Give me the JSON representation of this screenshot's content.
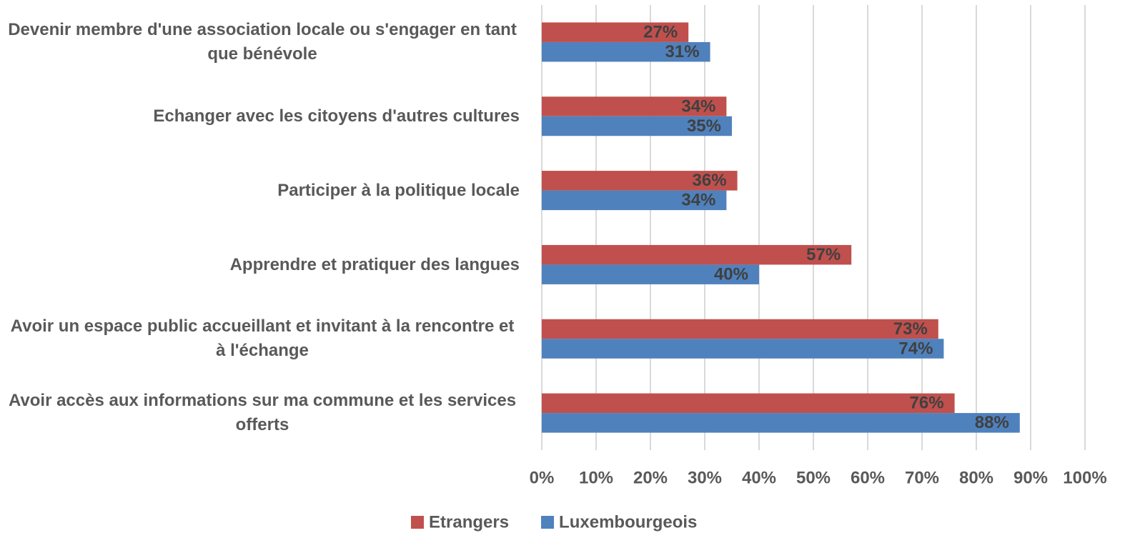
{
  "chart_data": {
    "type": "barh",
    "categories": [
      "Devenir membre d'une association locale ou s'engager en tant que bénévole",
      "Echanger avec les citoyens d'autres cultures",
      "Participer à la politique locale",
      "Apprendre et pratiquer des langues",
      "Avoir un espace public accueillant et invitant à la rencontre et à l'échange",
      "Avoir accès aux informations sur ma commune et les services offerts"
    ],
    "series": [
      {
        "name": "Etrangers",
        "color": "#c0504d",
        "values": [
          27,
          34,
          36,
          57,
          73,
          76
        ],
        "value_labels": [
          "27%",
          "34%",
          "36%",
          "57%",
          "73%",
          "76%"
        ]
      },
      {
        "name": "Luxembourgeois",
        "color": "#4f81bd",
        "values": [
          31,
          35,
          34,
          40,
          74,
          88
        ],
        "value_labels": [
          "31%",
          "35%",
          "34%",
          "40%",
          "74%",
          "88%"
        ]
      }
    ],
    "xlim": [
      0,
      100
    ],
    "xticks": [
      {
        "value": 0,
        "label": "0%"
      },
      {
        "value": 10,
        "label": "10%"
      },
      {
        "value": 20,
        "label": "20%"
      },
      {
        "value": 30,
        "label": "30%"
      },
      {
        "value": 40,
        "label": "40%"
      },
      {
        "value": 50,
        "label": "50%"
      },
      {
        "value": 60,
        "label": "60%"
      },
      {
        "value": 70,
        "label": "70%"
      },
      {
        "value": 80,
        "label": "80%"
      },
      {
        "value": 90,
        "label": "90%"
      },
      {
        "value": 100,
        "label": "100%"
      }
    ],
    "grid": true,
    "legend": "bottom"
  }
}
